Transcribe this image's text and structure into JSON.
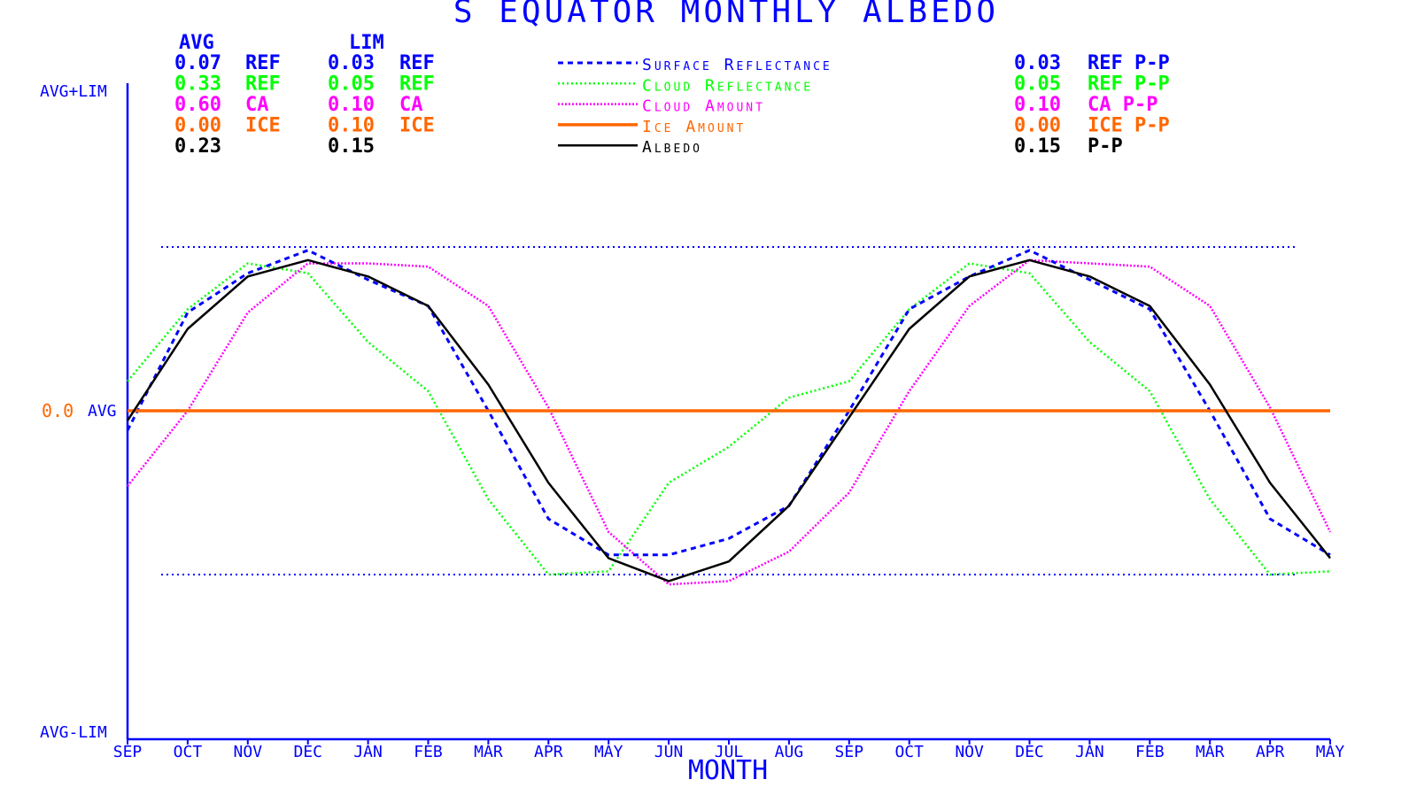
{
  "chart_data": {
    "type": "line",
    "title": "S EQUATOR MONTHLY ALBEDO",
    "xlabel": "MONTH",
    "ylabel": "",
    "ylim": [
      -1,
      1
    ],
    "y_axis_labels": {
      "top": "AVG+LIM",
      "bottom": "AVG-LIM",
      "mid_value": "0.0",
      "mid_label": "AVG"
    },
    "categories": [
      "SEP",
      "OCT",
      "NOV",
      "DEC",
      "JAN",
      "FEB",
      "MAR",
      "APR",
      "MAY",
      "JUN",
      "JUL",
      "AUG",
      "SEP",
      "OCT",
      "NOV",
      "DEC",
      "JAN",
      "FEB",
      "MAR",
      "APR",
      "MAY"
    ],
    "reference_lines": [
      0.5,
      -0.5
    ],
    "series": [
      {
        "key": "surface",
        "name": "Surface Reflectance",
        "color": "#0000ff",
        "dash": "6,5",
        "width": 3,
        "values": [
          -0.06,
          0.3,
          0.42,
          0.49,
          0.4,
          0.32,
          0,
          -0.33,
          -0.44,
          -0.44,
          -0.39,
          -0.29,
          0,
          0.31,
          0.41,
          0.49,
          0.4,
          0.31,
          0,
          -0.33,
          -0.44
        ]
      },
      {
        "key": "cloud_ref",
        "name": "Cloud Reflectance",
        "color": "#00ff00",
        "dash": "2,3",
        "width": 2.5,
        "values": [
          0.09,
          0.31,
          0.45,
          0.42,
          0.21,
          0.06,
          -0.27,
          -0.5,
          -0.49,
          -0.22,
          -0.11,
          0.04,
          0.09,
          0.31,
          0.45,
          0.42,
          0.21,
          0.06,
          -0.27,
          -0.5,
          -0.49
        ]
      },
      {
        "key": "cloud_amt",
        "name": "Cloud Amount",
        "color": "#ff00ff",
        "dash": "2,2",
        "width": 2.5,
        "values": [
          -0.23,
          0,
          0.3,
          0.45,
          0.45,
          0.44,
          0.32,
          0.01,
          -0.37,
          -0.53,
          -0.52,
          -0.43,
          -0.25,
          0.06,
          0.32,
          0.46,
          0.45,
          0.44,
          0.32,
          0.01,
          -0.37
        ]
      },
      {
        "key": "ice",
        "name": "Ice Amount",
        "color": "#ff6600",
        "dash": "",
        "width": 3.5,
        "values": [
          0,
          0,
          0,
          0,
          0,
          0,
          0,
          0,
          0,
          0,
          0,
          0,
          0,
          0,
          0,
          0,
          0,
          0,
          0,
          0,
          0
        ]
      },
      {
        "key": "albedo",
        "name": "Albedo",
        "color": "#000000",
        "dash": "",
        "width": 2.5,
        "values": [
          -0.03,
          0.25,
          0.41,
          0.46,
          0.41,
          0.32,
          0.08,
          -0.22,
          -0.45,
          -0.52,
          -0.46,
          -0.29,
          -0.02,
          0.25,
          0.41,
          0.46,
          0.41,
          0.32,
          0.08,
          -0.22,
          -0.45
        ]
      }
    ]
  },
  "stats": {
    "avg_header": "AVG",
    "lim_header": "LIM",
    "rows": [
      {
        "avg": "0.07",
        "avg_unit": "REF",
        "lim": "0.03",
        "lim_unit": "REF",
        "color": "#0000ff"
      },
      {
        "avg": "0.33",
        "avg_unit": "REF",
        "lim": "0.05",
        "lim_unit": "REF",
        "color": "#00ff00"
      },
      {
        "avg": "0.60",
        "avg_unit": "CA",
        "lim": "0.10",
        "lim_unit": "CA",
        "color": "#ff00ff"
      },
      {
        "avg": "0.00",
        "avg_unit": "ICE",
        "lim": "0.10",
        "lim_unit": "ICE",
        "color": "#ff6600"
      },
      {
        "avg": "0.23",
        "avg_unit": "",
        "lim": "0.15",
        "lim_unit": "",
        "color": "#000000"
      }
    ],
    "pp_rows": [
      {
        "value": "0.03",
        "label": "REF P-P",
        "color": "#0000ff"
      },
      {
        "value": "0.05",
        "label": "REF P-P",
        "color": "#00ff00"
      },
      {
        "value": "0.10",
        "label": "CA P-P",
        "color": "#ff00ff"
      },
      {
        "value": "0.00",
        "label": "ICE P-P",
        "color": "#ff6600"
      },
      {
        "value": "0.15",
        "label": "P-P",
        "color": "#000000"
      }
    ]
  },
  "colors": {
    "axis": "#0000ff",
    "ref_line": "#0000ff",
    "mid_value": "#ff6600"
  }
}
